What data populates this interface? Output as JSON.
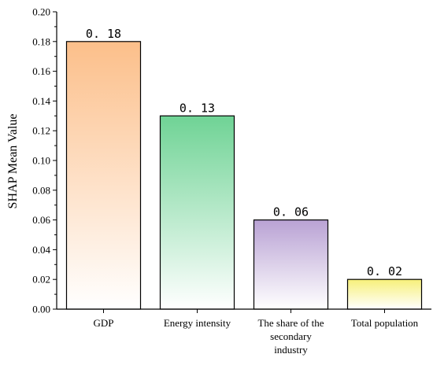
{
  "chart_data": {
    "type": "bar",
    "title": "",
    "xlabel": "",
    "ylabel": "SHAP Mean Value",
    "categories": [
      "GDP",
      "Energy intensity",
      "The share of the secondary industry",
      "Total population"
    ],
    "category_label_lines": [
      [
        "GDP"
      ],
      [
        "Energy intensity"
      ],
      [
        "The share of the",
        "secondary",
        "industry"
      ],
      [
        "Total population"
      ]
    ],
    "values": [
      0.18,
      0.13,
      0.06,
      0.02
    ],
    "data_labels": [
      "0. 18",
      "0. 13",
      "0. 06",
      "0. 02"
    ],
    "ylim": [
      0,
      0.2
    ],
    "yticks": [
      0.0,
      0.02,
      0.04,
      0.06,
      0.08,
      0.1,
      0.12,
      0.14,
      0.16,
      0.18,
      0.2
    ],
    "ytick_labels": [
      "0.00",
      "0.02",
      "0.04",
      "0.06",
      "0.08",
      "0.10",
      "0.12",
      "0.14",
      "0.16",
      "0.18",
      "0.20"
    ],
    "bar_colors": [
      "#fcbf8a",
      "#6fd395",
      "#b9a2d4",
      "#f7f07a"
    ],
    "grid": false,
    "legend": "none"
  }
}
